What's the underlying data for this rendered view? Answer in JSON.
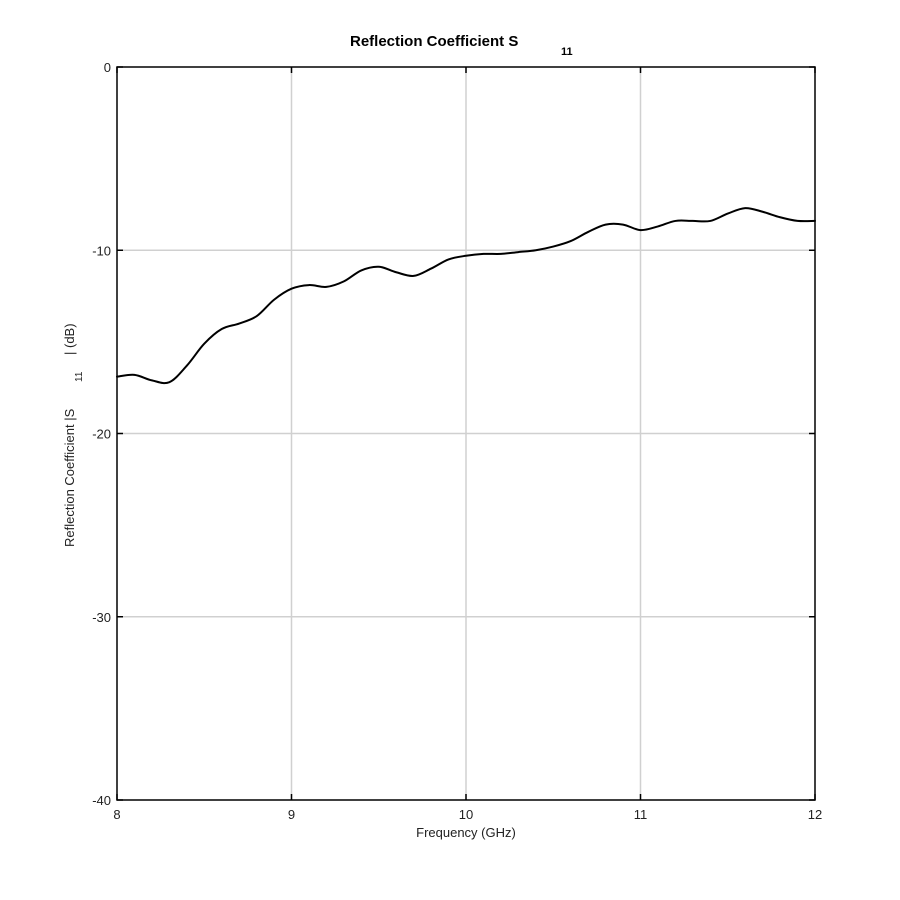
{
  "chart_data": {
    "type": "line",
    "title": "Reflection Coefficient S",
    "title_subscript": "11",
    "xlabel": "Frequency (GHz)",
    "ylabel_prefix": "Reflection Coefficient |S",
    "ylabel_subscript": "11",
    "ylabel_suffix": "| (dB)",
    "xlim": [
      8,
      12
    ],
    "ylim": [
      -40,
      0
    ],
    "xticks": [
      8,
      9,
      10,
      11,
      12
    ],
    "yticks": [
      0,
      -10,
      -20,
      -30,
      -40
    ],
    "xtick_labels": [
      "8",
      "9",
      "10",
      "11",
      "12"
    ],
    "ytick_labels": [
      "0",
      "-10",
      "-20",
      "-30",
      "-40"
    ],
    "grid": true,
    "line_color": "#000000",
    "grid_color": "#d0d0d0",
    "series": [
      {
        "x": [
          8.0,
          8.1,
          8.2,
          8.3,
          8.4,
          8.5,
          8.6,
          8.7,
          8.8,
          8.9,
          9.0,
          9.1,
          9.2,
          9.3,
          9.4,
          9.5,
          9.6,
          9.7,
          9.8,
          9.9,
          10.0,
          10.1,
          10.2,
          10.3,
          10.4,
          10.5,
          10.6,
          10.7,
          10.8,
          10.9,
          11.0,
          11.1,
          11.2,
          11.3,
          11.4,
          11.5,
          11.6,
          11.7,
          11.8,
          11.9,
          12.0
        ],
        "y": [
          -16.9,
          -16.8,
          -17.1,
          -17.2,
          -16.3,
          -15.1,
          -14.3,
          -14.0,
          -13.6,
          -12.7,
          -12.1,
          -11.9,
          -12.0,
          -11.7,
          -11.1,
          -10.9,
          -11.2,
          -11.4,
          -11.0,
          -10.5,
          -10.3,
          -10.2,
          -10.2,
          -10.1,
          -10.0,
          -9.8,
          -9.5,
          -9.0,
          -8.6,
          -8.6,
          -8.9,
          -8.7,
          -8.4,
          -8.4,
          -8.4,
          -8.0,
          -7.7,
          -7.9,
          -8.2,
          -8.4,
          -8.4
        ]
      }
    ]
  }
}
